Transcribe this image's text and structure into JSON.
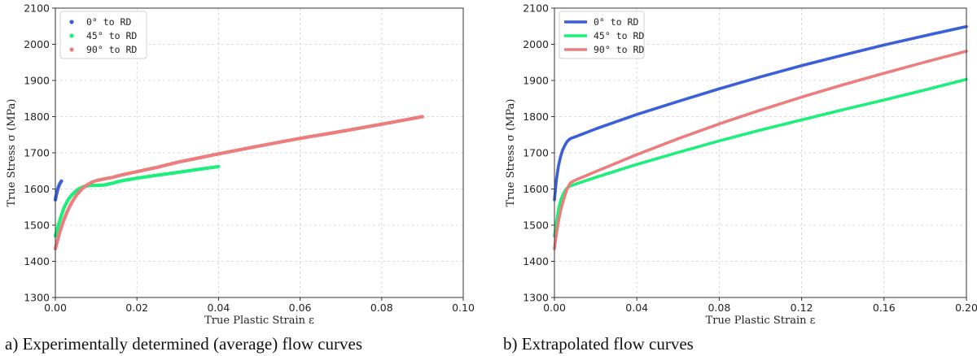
{
  "chart_data": [
    {
      "id": "a",
      "type": "line",
      "caption": "a) Experimentally determined (average) flow curves",
      "xlabel": "True Plastic Strain ε",
      "ylabel": "True Stress σ (MPa)",
      "xlim": [
        0,
        0.1
      ],
      "ylim": [
        1300,
        2100
      ],
      "xticks": [
        0.0,
        0.02,
        0.04,
        0.06,
        0.08,
        0.1
      ],
      "xtick_labels": [
        "0.00",
        "0.02",
        "0.04",
        "0.06",
        "0.08",
        "0.10"
      ],
      "yticks": [
        1300,
        1400,
        1500,
        1600,
        1700,
        1800,
        1900,
        2000,
        2100
      ],
      "ytick_labels": [
        "1300",
        "1400",
        "1500",
        "1600",
        "1700",
        "1800",
        "1900",
        "2000",
        "2100"
      ],
      "legend_position": "top-left",
      "legend_marker": "dot",
      "grid": true,
      "series": [
        {
          "name": "0° to RD",
          "color": "#3a5fd9",
          "x": [
            0.0,
            0.0002,
            0.0005,
            0.0008,
            0.0011,
            0.0015
          ],
          "y": [
            1570,
            1582,
            1596,
            1607,
            1615,
            1622
          ]
        },
        {
          "name": "45° to RD",
          "color": "#1cf07a",
          "x": [
            0.0,
            0.001,
            0.002,
            0.003,
            0.004,
            0.005,
            0.006,
            0.007,
            0.008,
            0.009,
            0.01,
            0.012,
            0.014,
            0.016,
            0.02,
            0.025,
            0.03,
            0.035,
            0.04
          ],
          "y": [
            1470,
            1510,
            1545,
            1568,
            1583,
            1594,
            1602,
            1607,
            1609,
            1610,
            1610,
            1611,
            1616,
            1622,
            1630,
            1638,
            1646,
            1654,
            1662
          ]
        },
        {
          "name": "90° to RD",
          "color": "#ec7d7d",
          "x": [
            0.0,
            0.001,
            0.002,
            0.003,
            0.004,
            0.005,
            0.006,
            0.007,
            0.008,
            0.009,
            0.01,
            0.012,
            0.014,
            0.016,
            0.02,
            0.025,
            0.03,
            0.04,
            0.05,
            0.06,
            0.07,
            0.08,
            0.09
          ],
          "y": [
            1435,
            1478,
            1512,
            1540,
            1562,
            1580,
            1594,
            1605,
            1613,
            1619,
            1623,
            1628,
            1632,
            1638,
            1648,
            1660,
            1674,
            1697,
            1719,
            1740,
            1759,
            1779,
            1800
          ]
        }
      ]
    },
    {
      "id": "b",
      "type": "line",
      "caption": "b) Extrapolated flow curves",
      "xlabel": "True Plastic Strain ε",
      "ylabel": "True Stress σ (MPa)",
      "xlim": [
        0,
        0.2
      ],
      "ylim": [
        1300,
        2100
      ],
      "xticks": [
        0.0,
        0.04,
        0.08,
        0.12,
        0.16,
        0.2
      ],
      "xtick_labels": [
        "0.00",
        "0.04",
        "0.08",
        "0.12",
        "0.16",
        "0.20"
      ],
      "yticks": [
        1300,
        1400,
        1500,
        1600,
        1700,
        1800,
        1900,
        2000,
        2100
      ],
      "ytick_labels": [
        "1300",
        "1400",
        "1500",
        "1600",
        "1700",
        "1800",
        "1900",
        "2000",
        "2100"
      ],
      "legend_position": "top-left",
      "legend_marker": "line",
      "grid": true,
      "series": [
        {
          "name": "0° to RD",
          "color": "#3a5fd9",
          "x": [
            0.0,
            0.001,
            0.002,
            0.003,
            0.004,
            0.005,
            0.006,
            0.007,
            0.008,
            0.01,
            0.015,
            0.02,
            0.03,
            0.04,
            0.06,
            0.08,
            0.1,
            0.12,
            0.14,
            0.16,
            0.18,
            0.2
          ],
          "y": [
            1570,
            1628,
            1665,
            1690,
            1708,
            1720,
            1730,
            1736,
            1740,
            1744,
            1755,
            1766,
            1786,
            1806,
            1842,
            1877,
            1910,
            1941,
            1970,
            1998,
            2024,
            2049
          ]
        },
        {
          "name": "45° to RD",
          "color": "#1cf07a",
          "x": [
            0.0,
            0.001,
            0.002,
            0.003,
            0.004,
            0.005,
            0.006,
            0.007,
            0.008,
            0.01,
            0.02,
            0.04,
            0.06,
            0.08,
            0.1,
            0.12,
            0.14,
            0.16,
            0.18,
            0.2
          ],
          "y": [
            1470,
            1510,
            1545,
            1568,
            1583,
            1594,
            1602,
            1606,
            1609,
            1613,
            1632,
            1668,
            1701,
            1733,
            1763,
            1791,
            1819,
            1846,
            1874,
            1903
          ]
        },
        {
          "name": "90° to RD",
          "color": "#ec7d7d",
          "x": [
            0.0,
            0.001,
            0.002,
            0.003,
            0.004,
            0.005,
            0.006,
            0.007,
            0.008,
            0.01,
            0.02,
            0.04,
            0.06,
            0.08,
            0.1,
            0.12,
            0.14,
            0.16,
            0.18,
            0.2
          ],
          "y": [
            1435,
            1478,
            1512,
            1540,
            1562,
            1580,
            1598,
            1610,
            1618,
            1624,
            1648,
            1695,
            1739,
            1780,
            1818,
            1854,
            1888,
            1920,
            1951,
            1981
          ]
        }
      ]
    }
  ]
}
